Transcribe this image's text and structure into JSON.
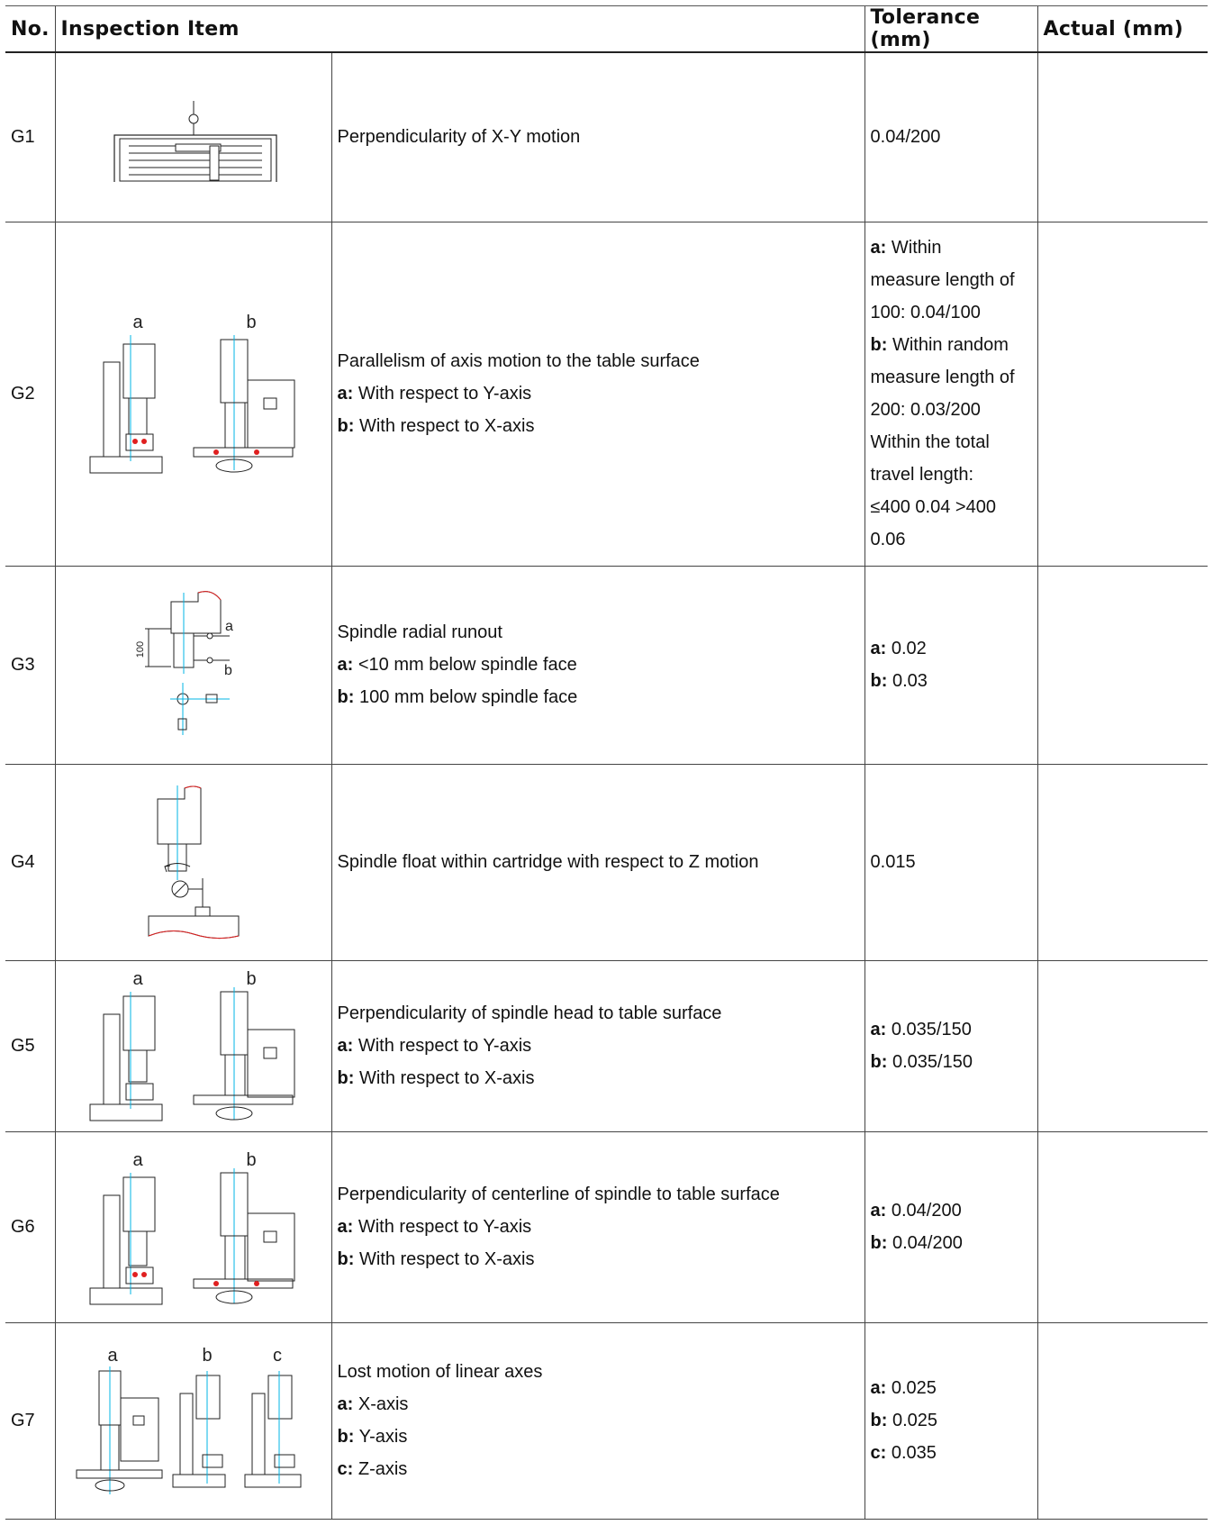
{
  "header": {
    "no": "No.",
    "item": "Inspection Item",
    "tolerance": "Tolerance (mm)",
    "actual": "Actual (mm)"
  },
  "rows": [
    {
      "no": "G1",
      "title": "Perpendicularity of X-Y motion",
      "subs": [],
      "tolerance": [
        {
          "k": "",
          "v": "0.04/200"
        }
      ],
      "actual": "",
      "figure": "g1-xy-table-diagram"
    },
    {
      "no": "G2",
      "title": "Parallelism of axis motion to the table surface",
      "subs": [
        {
          "k": "a:",
          "v": " With respect to Y-axis"
        },
        {
          "k": "b:",
          "v": " With respect to X-axis"
        }
      ],
      "tolerance": [
        {
          "k": "a:",
          "v": " Within"
        },
        {
          "k": "",
          "v": "measure length of"
        },
        {
          "k": "",
          "v": "100: 0.04/100"
        },
        {
          "k": "b:",
          "v": " Within random"
        },
        {
          "k": "",
          "v": "measure length of"
        },
        {
          "k": "",
          "v": "200: 0.03/200"
        },
        {
          "k": "",
          "v": "Within the total"
        },
        {
          "k": "",
          "v": "travel length:"
        },
        {
          "k": "",
          "v": "≤400 0.04 >400"
        },
        {
          "k": "",
          "v": "0.06"
        }
      ],
      "actual": "",
      "figure_labels": [
        "a",
        "b"
      ]
    },
    {
      "no": "G3",
      "title": "Spindle radial runout",
      "subs": [
        {
          "k": "a:",
          "v": " <10 mm below spindle face"
        },
        {
          "k": "b:",
          "v": " 100 mm below spindle face"
        }
      ],
      "tolerance": [
        {
          "k": "a:",
          "v": " 0.02"
        },
        {
          "k": "b:",
          "v": " 0.03"
        }
      ],
      "actual": "",
      "figure_labels": [
        "a",
        "b",
        "100"
      ]
    },
    {
      "no": "G4",
      "title": "Spindle float within cartridge with respect to Z motion",
      "subs": [],
      "tolerance": [
        {
          "k": "",
          "v": "0.015"
        }
      ],
      "actual": ""
    },
    {
      "no": "G5",
      "title": "Perpendicularity of spindle head to table surface",
      "subs": [
        {
          "k": "a:",
          "v": " With respect to Y-axis"
        },
        {
          "k": "b:",
          "v": " With respect to X-axis"
        }
      ],
      "tolerance": [
        {
          "k": "a:",
          "v": " 0.035/150"
        },
        {
          "k": "b:",
          "v": " 0.035/150"
        }
      ],
      "actual": "",
      "figure_labels": [
        "a",
        "b"
      ]
    },
    {
      "no": "G6",
      "title": "Perpendicularity of centerline of spindle to table surface",
      "subs": [
        {
          "k": "a:",
          "v": " With respect to Y-axis"
        },
        {
          "k": "b:",
          "v": " With respect to X-axis"
        }
      ],
      "tolerance": [
        {
          "k": "a:",
          "v": " 0.04/200"
        },
        {
          "k": "b:",
          "v": " 0.04/200"
        }
      ],
      "actual": "",
      "figure_labels": [
        "a",
        "b"
      ]
    },
    {
      "no": "G7",
      "title": "Lost motion of linear axes",
      "subs": [
        {
          "k": "a:",
          "v": " X-axis"
        },
        {
          "k": "b:",
          "v": " Y-axis"
        },
        {
          "k": "c:",
          "v": " Z-axis"
        }
      ],
      "tolerance": [
        {
          "k": "a:",
          "v": " 0.025"
        },
        {
          "k": "b:",
          "v": " 0.025"
        },
        {
          "k": "c:",
          "v": " 0.035"
        }
      ],
      "actual": "",
      "figure_labels": [
        "a",
        "b",
        "c"
      ]
    }
  ],
  "colors": {
    "accent_line": "#00b4e6",
    "red_mark": "#e02020",
    "rule": "#222222"
  }
}
